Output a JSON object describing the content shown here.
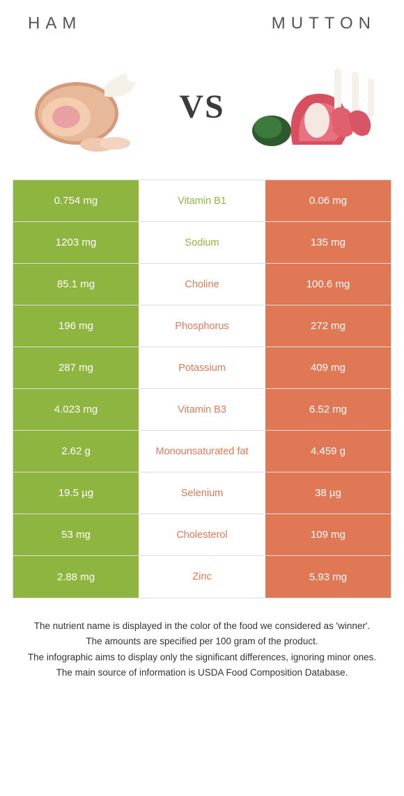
{
  "colors": {
    "ham": "#8eb53f",
    "mutton": "#e07856",
    "text": "#333333",
    "border": "#dddddd"
  },
  "header": {
    "left": "Ham",
    "right": "Mutton"
  },
  "vs_label": "VS",
  "rows": [
    {
      "left": "0.754 mg",
      "label": "Vitamin B1",
      "right": "0.06 mg",
      "winner": "ham"
    },
    {
      "left": "1203 mg",
      "label": "Sodium",
      "right": "135 mg",
      "winner": "ham"
    },
    {
      "left": "85.1 mg",
      "label": "Choline",
      "right": "100.6 mg",
      "winner": "mutton"
    },
    {
      "left": "196 mg",
      "label": "Phosphorus",
      "right": "272 mg",
      "winner": "mutton"
    },
    {
      "left": "287 mg",
      "label": "Potassium",
      "right": "409 mg",
      "winner": "mutton"
    },
    {
      "left": "4.023 mg",
      "label": "Vitamin B3",
      "right": "6.52 mg",
      "winner": "mutton"
    },
    {
      "left": "2.62 g",
      "label": "Monounsaturated fat",
      "right": "4.459 g",
      "winner": "mutton"
    },
    {
      "left": "19.5 µg",
      "label": "Selenium",
      "right": "38 µg",
      "winner": "mutton"
    },
    {
      "left": "53 mg",
      "label": "Cholesterol",
      "right": "109 mg",
      "winner": "mutton"
    },
    {
      "left": "2.88 mg",
      "label": "Zinc",
      "right": "5.93 mg",
      "winner": "mutton"
    }
  ],
  "footnote": [
    "The nutrient name is displayed in the color of the food we considered as 'winner'.",
    "The amounts are specified per 100 gram of the product.",
    "The infographic aims to display only the significant differences, ignoring minor ones.",
    "The main source of information is USDA Food Composition Database."
  ]
}
